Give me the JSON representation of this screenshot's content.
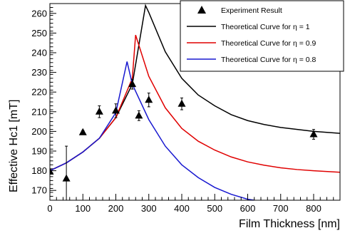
{
  "chart_data": {
    "type": "scatter",
    "xlabel": "Film Thickness [nm]",
    "ylabel": "Effective Hc1 [mT]",
    "xlim": [
      0,
      880
    ],
    "ylim": [
      165,
      265
    ],
    "xticks": [
      0,
      100,
      200,
      300,
      400,
      500,
      600,
      700,
      800
    ],
    "yticks": [
      170,
      180,
      190,
      200,
      210,
      220,
      230,
      240,
      250,
      260
    ],
    "grid": false,
    "legend_position": "top-right",
    "experiment": {
      "name": "Experiment Result",
      "color": "#000000",
      "marker": "triangle-up",
      "points": [
        {
          "x": 0,
          "y": 179.5,
          "err": 0.5
        },
        {
          "x": 50,
          "y": 176,
          "err": 16.5
        },
        {
          "x": 100,
          "y": 199.5,
          "err": 1
        },
        {
          "x": 150,
          "y": 210,
          "err": 3
        },
        {
          "x": 200,
          "y": 210.5,
          "err": 3.5
        },
        {
          "x": 250,
          "y": 224,
          "err": 2.5
        },
        {
          "x": 270,
          "y": 208,
          "err": 2.5
        },
        {
          "x": 300,
          "y": 216,
          "err": 3.5
        },
        {
          "x": 400,
          "y": 214,
          "err": 3
        },
        {
          "x": 800,
          "y": 198.5,
          "err": 2.5
        }
      ]
    },
    "series": [
      {
        "name": "Theoretical Curve for η = 1",
        "color": "#000000",
        "x": [
          0,
          50,
          100,
          150,
          200,
          250,
          290,
          300,
          350,
          400,
          450,
          500,
          550,
          600,
          650,
          700,
          750,
          800,
          880
        ],
        "y": [
          180,
          184,
          189.5,
          196.5,
          207,
          224,
          264,
          260.5,
          240.5,
          227,
          218.5,
          213,
          208.5,
          205.5,
          203.5,
          202,
          201,
          200,
          199
        ]
      },
      {
        "name": "Theoretical Curve for η = 0.9",
        "color": "#e00000",
        "x": [
          0,
          50,
          100,
          150,
          200,
          250,
          260,
          300,
          350,
          400,
          450,
          500,
          550,
          600,
          650,
          700,
          750,
          800,
          880
        ],
        "y": [
          180,
          184,
          189.5,
          196.5,
          207,
          227,
          249,
          228,
          212,
          201.5,
          195,
          190.5,
          187,
          184.5,
          182.8,
          181.5,
          180.6,
          180,
          179.2
        ]
      },
      {
        "name": "Theoretical Curve for η = 0.8",
        "color": "#1818d0",
        "x": [
          0,
          50,
          100,
          150,
          200,
          234,
          250,
          300,
          350,
          400,
          450,
          500,
          550,
          600,
          620
        ],
        "y": [
          180,
          184,
          189.5,
          196.5,
          209.5,
          235.5,
          224,
          206,
          192.5,
          183,
          176.5,
          171.5,
          168,
          165.5,
          165
        ]
      }
    ]
  }
}
